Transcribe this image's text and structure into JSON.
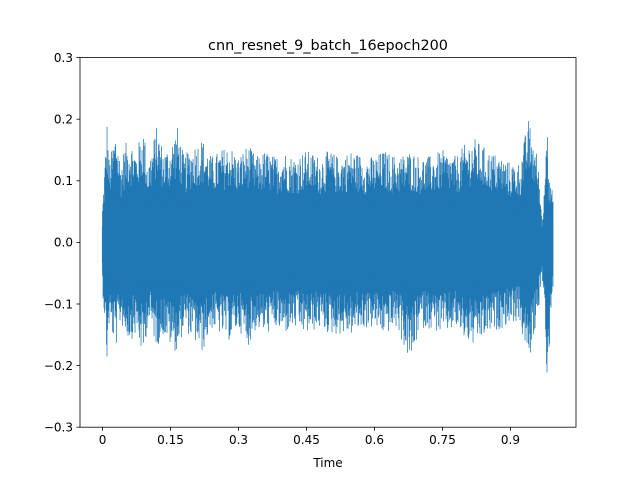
{
  "chart_data": {
    "type": "line",
    "title": "cnn_resnet_9_batch_16epoch200",
    "xlabel": "Time",
    "ylabel": "",
    "xlim": [
      -0.0497,
      1.0446
    ],
    "ylim": [
      -0.3,
      0.3
    ],
    "x_ticks": [
      {
        "value": 0,
        "label": "0"
      },
      {
        "value": 0.15,
        "label": "0.15"
      },
      {
        "value": 0.3,
        "label": "0.3"
      },
      {
        "value": 0.45,
        "label": "0.45"
      },
      {
        "value": 0.6,
        "label": "0.6"
      },
      {
        "value": 0.75,
        "label": "0.75"
      },
      {
        "value": 0.9,
        "label": "0.9"
      }
    ],
    "y_ticks": [
      {
        "value": 0.3,
        "label": "0.3"
      },
      {
        "value": 0.2,
        "label": "0.2"
      },
      {
        "value": 0.1,
        "label": "0.1"
      },
      {
        "value": 0.0,
        "label": "0.0"
      },
      {
        "value": -0.1,
        "label": "−0.1"
      },
      {
        "value": -0.2,
        "label": "−0.2"
      },
      {
        "value": -0.3,
        "label": "−0.3"
      }
    ],
    "grid": false,
    "legend": "none",
    "series": [
      {
        "color": "#1f77b4",
        "x": [
          0,
          0.005,
          0.01,
          0.015,
          0.02,
          0.03,
          0.04,
          0.05,
          0.06,
          0.075,
          0.09,
          0.1,
          0.12,
          0.135,
          0.15,
          0.165,
          0.18,
          0.2,
          0.22,
          0.24,
          0.26,
          0.28,
          0.3,
          0.32,
          0.34,
          0.36,
          0.38,
          0.4,
          0.42,
          0.45,
          0.48,
          0.5,
          0.52,
          0.55,
          0.58,
          0.6,
          0.62,
          0.65,
          0.68,
          0.7,
          0.72,
          0.75,
          0.78,
          0.8,
          0.82,
          0.85,
          0.88,
          0.9,
          0.92,
          0.94,
          0.96,
          0.97,
          0.975,
          0.98,
          0.985,
          0.99,
          0.995
        ],
        "max": [
          0.06,
          0.13,
          0.2,
          0.13,
          0.15,
          0.19,
          0.13,
          0.16,
          0.17,
          0.15,
          0.19,
          0.13,
          0.19,
          0.15,
          0.16,
          0.19,
          0.14,
          0.16,
          0.17,
          0.14,
          0.15,
          0.16,
          0.14,
          0.16,
          0.14,
          0.15,
          0.14,
          0.15,
          0.14,
          0.15,
          0.14,
          0.15,
          0.14,
          0.15,
          0.14,
          0.14,
          0.15,
          0.14,
          0.15,
          0.14,
          0.14,
          0.15,
          0.14,
          0.16,
          0.17,
          0.15,
          0.14,
          0.13,
          0.13,
          0.2,
          0.14,
          0.04,
          0.09,
          0.27,
          0.1,
          0.1,
          0.06
        ],
        "min": [
          -0.08,
          -0.13,
          -0.2,
          -0.13,
          -0.15,
          -0.17,
          -0.13,
          -0.15,
          -0.16,
          -0.15,
          -0.19,
          -0.13,
          -0.17,
          -0.15,
          -0.17,
          -0.18,
          -0.14,
          -0.16,
          -0.18,
          -0.14,
          -0.15,
          -0.16,
          -0.14,
          -0.17,
          -0.14,
          -0.15,
          -0.14,
          -0.15,
          -0.14,
          -0.15,
          -0.14,
          -0.15,
          -0.15,
          -0.15,
          -0.14,
          -0.14,
          -0.15,
          -0.14,
          -0.2,
          -0.14,
          -0.14,
          -0.15,
          -0.14,
          -0.16,
          -0.17,
          -0.15,
          -0.14,
          -0.13,
          -0.13,
          -0.2,
          -0.12,
          -0.06,
          -0.1,
          -0.27,
          -0.19,
          -0.1,
          -0.07
        ]
      }
    ]
  }
}
